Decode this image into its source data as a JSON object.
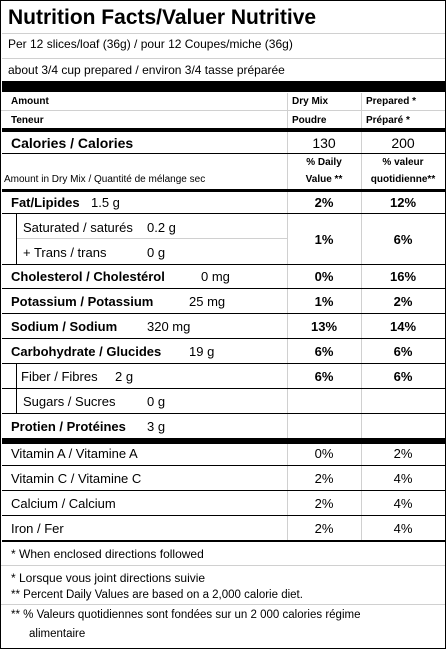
{
  "title": "Nutrition Facts/Valuer Nutritive",
  "serving": "Per 12 slices/loaf (36g) / pour 12 Coupes/miche (36g)",
  "prepared_note": "about 3/4 cup prepared / environ 3/4 tasse préparée",
  "headers": {
    "amount": "Amount",
    "teneur": "Teneur",
    "dry_mix_1": "Dry Mix",
    "dry_mix_2": "Poudre",
    "prepared_1": "Prepared *",
    "prepared_2": "Préparé *"
  },
  "calories": {
    "label": "Calories / Calories",
    "dry": "130",
    "prepared": "200"
  },
  "dv_header": {
    "pct_daily_1": "% Daily",
    "pct_daily_2": "Value **",
    "pct_valeur_1": "% valeur",
    "pct_valeur_2": "quotidienne**"
  },
  "amount_note": "Amount in Dry Mix / Quantité de mélange sec",
  "nutrients": {
    "fat": {
      "label": "Fat/Lipides",
      "amount": "1.5 g",
      "dry": "2%",
      "prepared": "12%"
    },
    "saturated": {
      "label": "Saturated / saturés",
      "amount": "0.2 g"
    },
    "trans": {
      "label": "+ Trans / trans",
      "amount": "0 g",
      "dry": "1%",
      "prepared": "6%"
    },
    "cholesterol": {
      "label": "Cholesterol / Cholestérol",
      "amount": "0 mg",
      "dry": "0%",
      "prepared": "16%"
    },
    "potassium": {
      "label": "Potassium / Potassium",
      "amount": "25 mg",
      "dry": "1%",
      "prepared": "2%"
    },
    "sodium": {
      "label": "Sodium / Sodium",
      "amount": "320 mg",
      "dry": "13%",
      "prepared": "14%"
    },
    "carbohydrate": {
      "label": "Carbohydrate / Glucides",
      "amount": "19 g",
      "dry": "6%",
      "prepared": "6%"
    },
    "fiber": {
      "label": "Fiber / Fibres",
      "amount": "2 g",
      "dry": "6%",
      "prepared": "6%"
    },
    "sugars": {
      "label": "Sugars / Sucres",
      "amount": "0 g"
    },
    "protein": {
      "label": "Protien / Protéines",
      "amount": "3 g"
    }
  },
  "vitamins": [
    {
      "label": "Vitamin A / Vitamine A",
      "dry": "0%",
      "prepared": "2%"
    },
    {
      "label": "Vitamin C / Vitamine C",
      "dry": "2%",
      "prepared": "4%"
    },
    {
      "label": "Calcium / Calcium",
      "dry": "2%",
      "prepared": "4%"
    },
    {
      "label": "Iron / Fer",
      "dry": "2%",
      "prepared": "4%"
    }
  ],
  "footnotes": {
    "f1": "* When enclosed directions followed",
    "f2": "* Lorsque vous joint directions suivie",
    "f3": "** Percent Daily Values are based on a 2,000 calorie diet.",
    "f4a": "** % Valeurs quotidiennes sont fondées sur un 2 000 calories régime",
    "f4b": "alimentaire"
  }
}
